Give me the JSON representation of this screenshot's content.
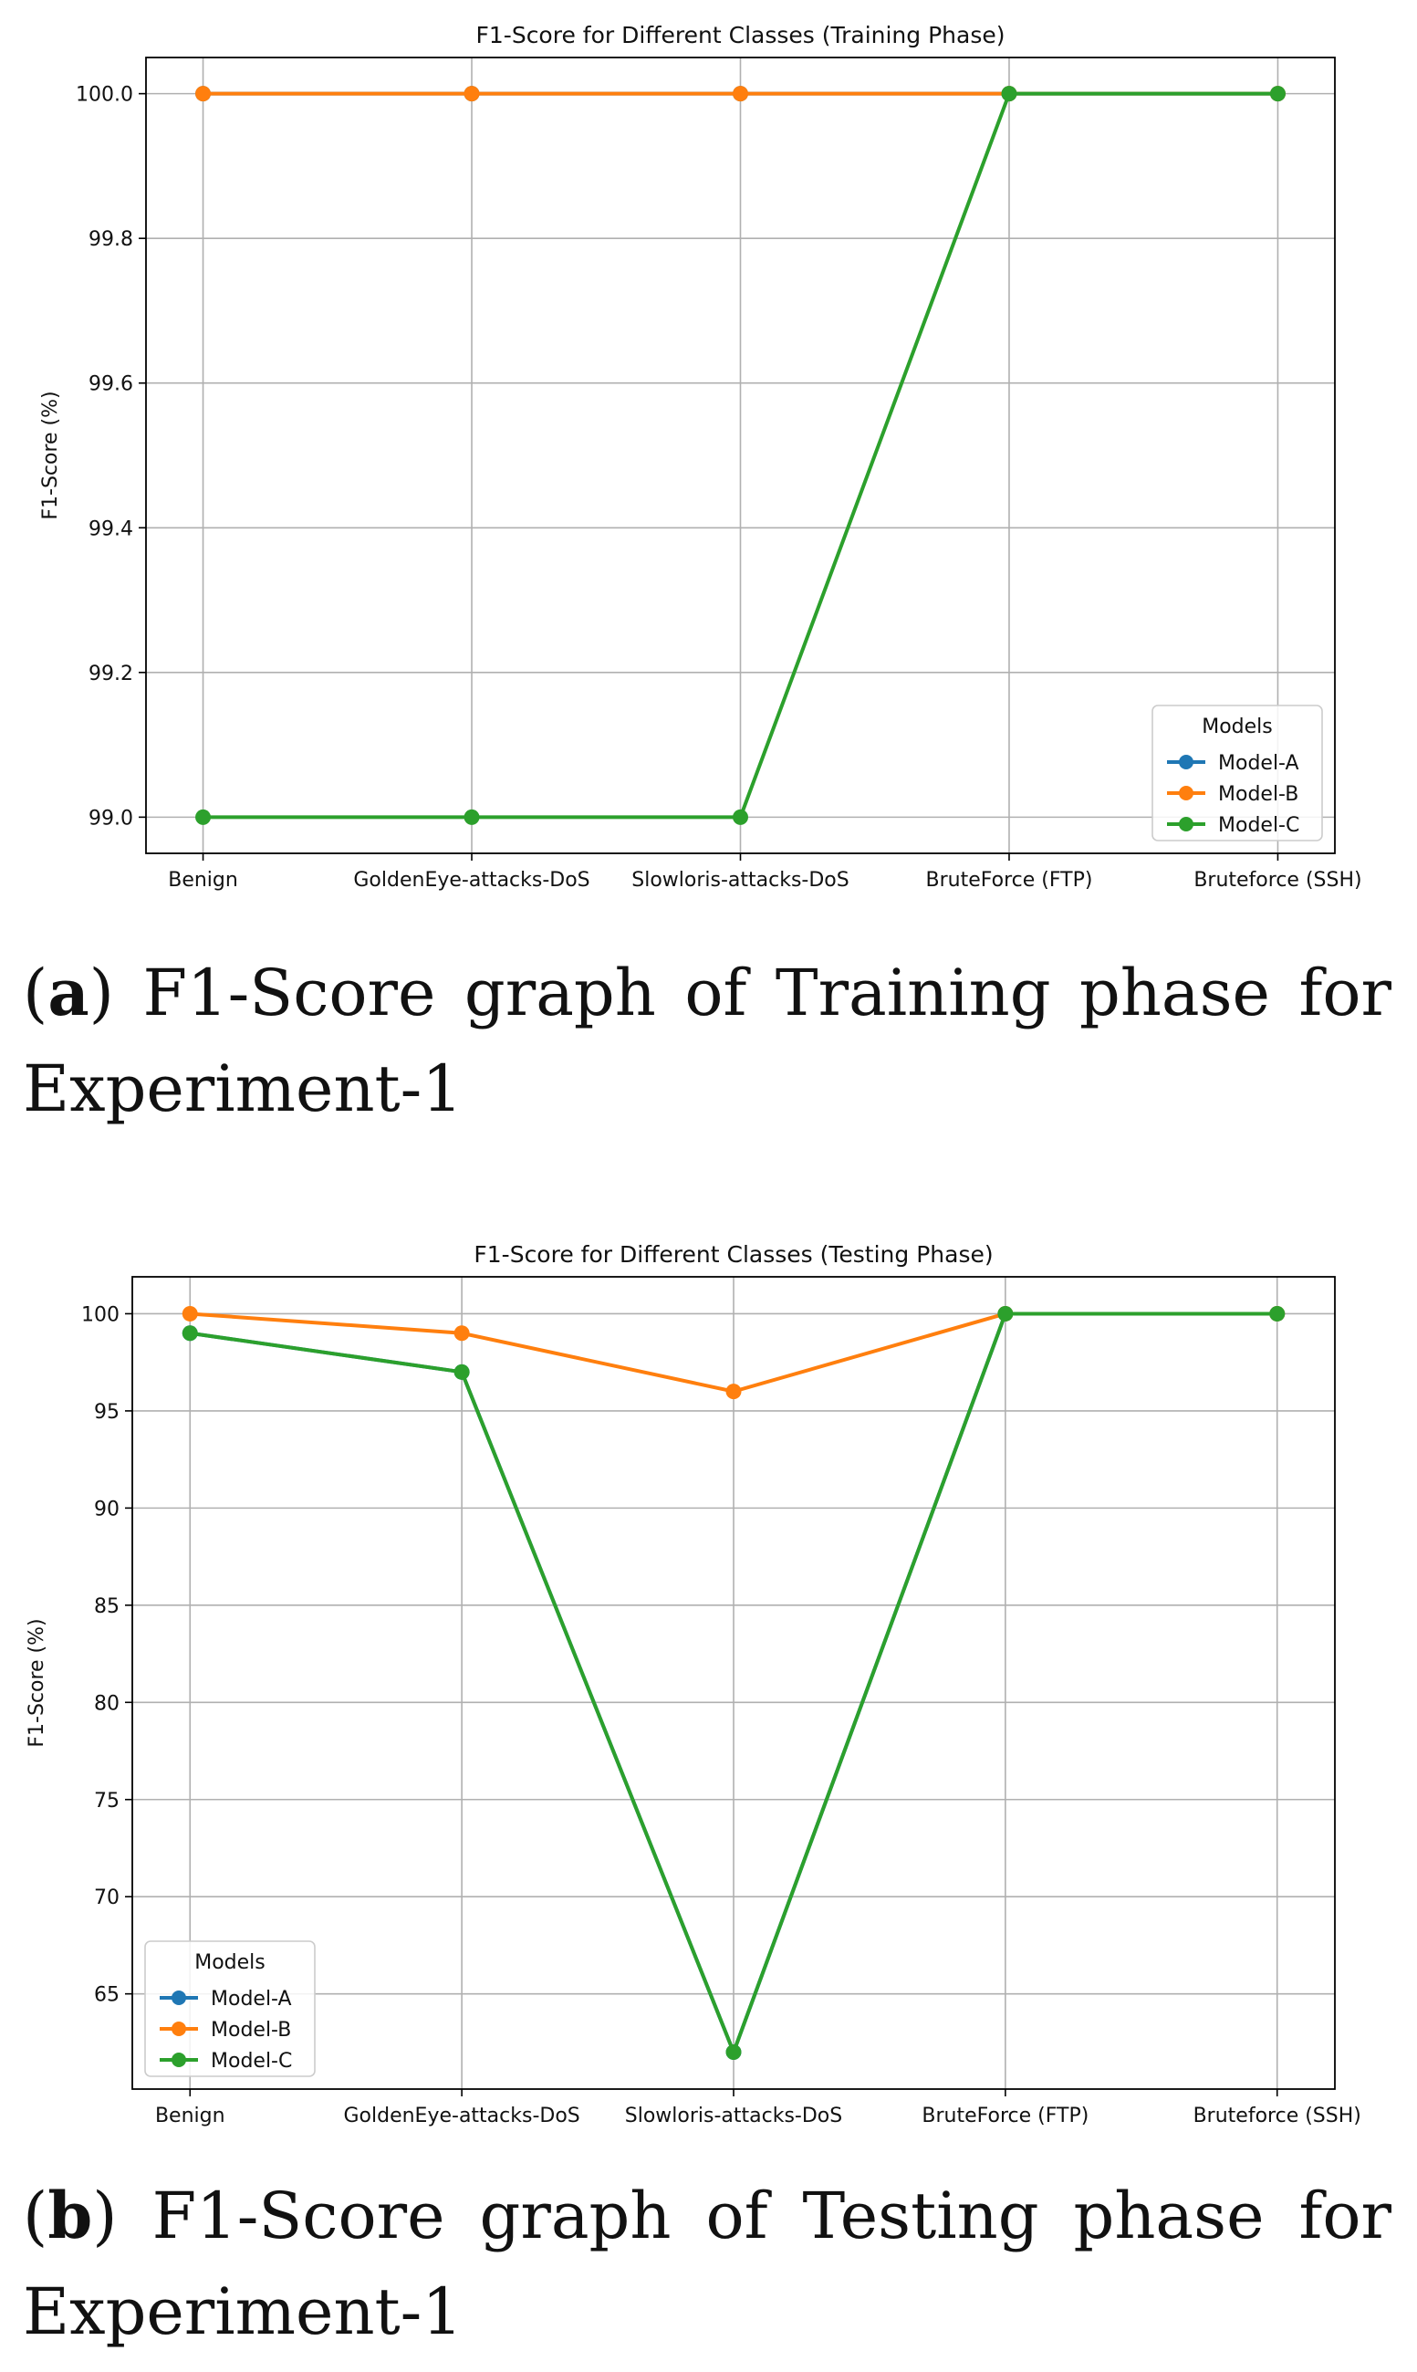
{
  "figures": [
    {
      "id": "a",
      "caption_letter": "a",
      "caption_text": "F1-Score graph of Training phase for Experiment-1",
      "chart_data": {
        "type": "line",
        "title": "F1-Score for Different Classes (Training Phase)",
        "xlabel": "",
        "ylabel": "F1-Score (%)",
        "categories": [
          "Benign",
          "GoldenEye-attacks-DoS",
          "Slowloris-attacks-DoS",
          "BruteForce (FTP)",
          "Bruteforce (SSH)"
        ],
        "ylim": [
          98.95,
          100.05
        ],
        "yticks": [
          99.0,
          99.2,
          99.4,
          99.6,
          99.8,
          100.0
        ],
        "ytick_labels": [
          "99.0",
          "99.2",
          "99.4",
          "99.6",
          "99.8",
          "100.0"
        ],
        "grid": true,
        "legend_title": "Models",
        "legend_position": "lower-right",
        "series": [
          {
            "name": "Model-A",
            "color": "#1f77b4",
            "values": [
              100,
              100,
              100,
              100,
              100
            ]
          },
          {
            "name": "Model-B",
            "color": "#ff7f0e",
            "values": [
              100,
              100,
              100,
              100,
              100
            ]
          },
          {
            "name": "Model-C",
            "color": "#2ca02c",
            "values": [
              99,
              99,
              99,
              100,
              100
            ]
          }
        ]
      }
    },
    {
      "id": "b",
      "caption_letter": "b",
      "caption_text": "F1-Score graph of Testing phase for Experiment-1",
      "chart_data": {
        "type": "line",
        "title": "F1-Score for Different Classes (Testing Phase)",
        "xlabel": "",
        "ylabel": "F1-Score (%)",
        "categories": [
          "Benign",
          "GoldenEye-attacks-DoS",
          "Slowloris-attacks-DoS",
          "BruteForce (FTP)",
          "Bruteforce (SSH)"
        ],
        "ylim": [
          60.1,
          101.9
        ],
        "yticks": [
          65,
          70,
          75,
          80,
          85,
          90,
          95,
          100
        ],
        "ytick_labels": [
          "65",
          "70",
          "75",
          "80",
          "85",
          "90",
          "95",
          "100"
        ],
        "grid": true,
        "legend_title": "Models",
        "legend_position": "lower-left",
        "series": [
          {
            "name": "Model-A",
            "color": "#1f77b4",
            "values": [
              99,
              97,
              62,
              100,
              100
            ]
          },
          {
            "name": "Model-B",
            "color": "#ff7f0e",
            "values": [
              100,
              99,
              96,
              100,
              100
            ]
          },
          {
            "name": "Model-C",
            "color": "#2ca02c",
            "values": [
              99,
              97,
              62,
              100,
              100
            ]
          }
        ]
      }
    }
  ]
}
